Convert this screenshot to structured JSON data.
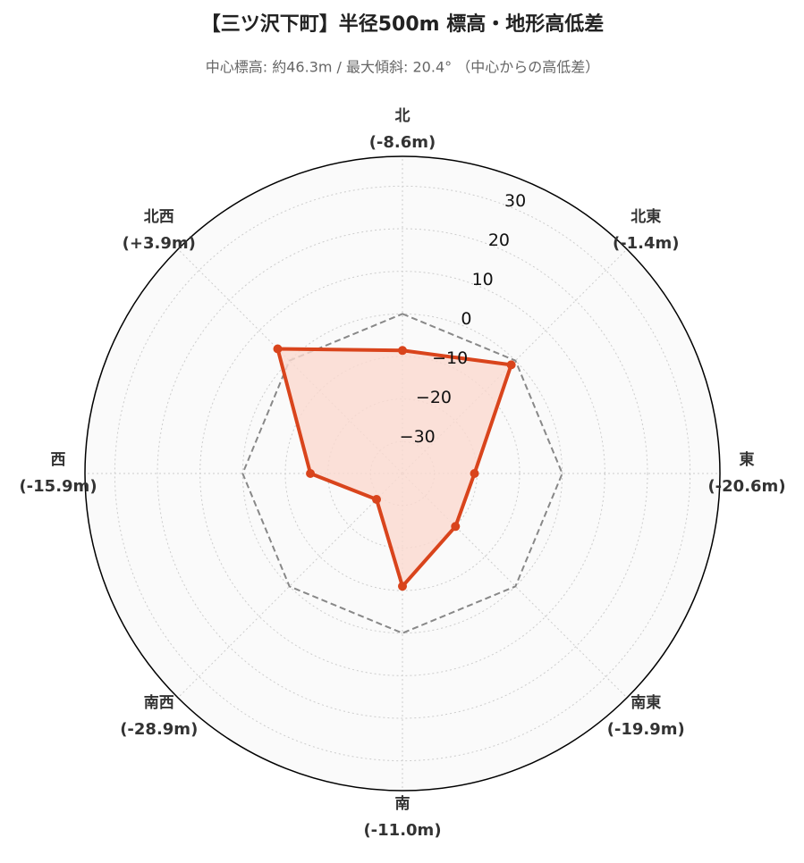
{
  "chart_data": {
    "type": "radar",
    "title": "【三ツ沢下町】半径500m 標高・地形高低差",
    "subtitle": "中心標高: 約46.3m / 最大傾斜: 20.4° （中心からの高低差）",
    "categories": [
      "北",
      "北東",
      "東",
      "南東",
      "南",
      "南西",
      "西",
      "北西"
    ],
    "values": [
      -8.6,
      -1.4,
      -20.6,
      -19.9,
      -11.0,
      -28.9,
      -15.9,
      3.9
    ],
    "value_labels": [
      "(-8.6m)",
      "(-1.4m)",
      "(-20.6m)",
      "(-19.9m)",
      "(-11.0m)",
      "(-28.9m)",
      "(-15.9m)",
      "(+3.9m)"
    ],
    "color": "#d9441c",
    "fill_color": "#fbd9cf",
    "reference_line": {
      "value": 0,
      "color": "#888888"
    },
    "ylim": [
      -37.5,
      37
    ],
    "yticks": [
      {
        "value": -30,
        "label": "−30"
      },
      {
        "value": -20,
        "label": "−20"
      },
      {
        "value": -10,
        "label": "−10"
      },
      0,
      10,
      20,
      30
    ],
    "grid": true
  }
}
